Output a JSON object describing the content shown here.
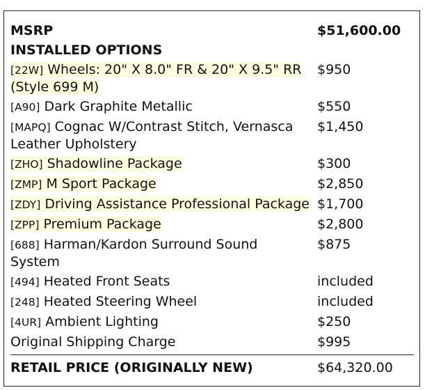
{
  "msrp": {
    "label": "MSRP",
    "value": "$51,600.00"
  },
  "options_heading": "INSTALLED OPTIONS",
  "options": [
    {
      "code": "[22W]",
      "name": "Wheels: 20\" X 8.0\" FR & 20\" X 9.5\" RR (Style 699 M)",
      "price": "$950",
      "highlighted": true
    },
    {
      "code": "[A90]",
      "name": "Dark Graphite Metallic",
      "price": "$550",
      "highlighted": false
    },
    {
      "code": "[MAPQ]",
      "name": "Cognac W/Contrast Stitch, Vernasca Leather Upholstery",
      "price": "$1,450",
      "highlighted": false
    },
    {
      "code": "[ZHO]",
      "name": "Shadowline Package",
      "price": "$300",
      "highlighted": true
    },
    {
      "code": "[ZMP]",
      "name": "M Sport Package",
      "price": "$2,850",
      "highlighted": true
    },
    {
      "code": "[ZDY]",
      "name": "Driving Assistance Professional Package",
      "price": "$1,700",
      "highlighted": true
    },
    {
      "code": "[ZPP]",
      "name": "Premium Package",
      "price": "$2,800",
      "highlighted": true
    },
    {
      "code": "[688]",
      "name": "Harman/Kardon Surround Sound System",
      "price": "$875",
      "highlighted": false
    },
    {
      "code": "[494]",
      "name": "Heated Front Seats",
      "price": "included",
      "highlighted": false
    },
    {
      "code": "[248]",
      "name": "Heated Steering Wheel",
      "price": "included",
      "highlighted": false
    },
    {
      "code": "[4UR]",
      "name": "Ambient Lighting",
      "price": "$250",
      "highlighted": false
    }
  ],
  "shipping": {
    "label": "Original Shipping Charge",
    "value": "$995"
  },
  "retail": {
    "label": "RETAIL PRICE (ORIGINALLY NEW)",
    "value": "$64,320.00"
  },
  "colors": {
    "highlight": "#fdfde0",
    "border": "#222222"
  }
}
